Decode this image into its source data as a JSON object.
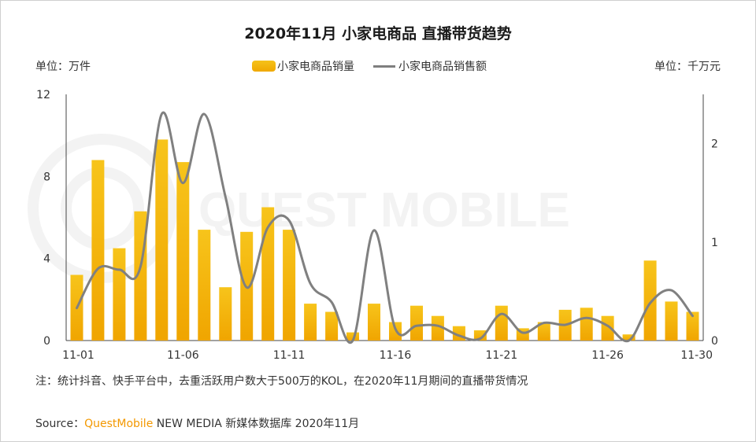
{
  "header": {
    "title": "2020年11月 小家电商品 直播带货趋势"
  },
  "units": {
    "left": "单位：万件",
    "right": "单位：千万元"
  },
  "legend": {
    "bar_label": "小家电商品销量",
    "line_label": "小家电商品销售额"
  },
  "watermark": {
    "text": "QUEST MOBILE"
  },
  "note": "注：统计抖音、快手平台中，去重活跃用户数大于500万的KOL，在2020年11月期间的直播带货情况",
  "source": {
    "prefix": "Source：",
    "brand": "QuestMobile",
    "rest": " NEW MEDIA 新媒体数据库 2020年11月"
  },
  "colors": {
    "bar_top": "#f7c41b",
    "bar_bottom": "#f0a500",
    "line": "#808080",
    "brand": "#f39800"
  },
  "chart_data": {
    "type": "bar",
    "categories": [
      "11-01",
      "11-02",
      "11-03",
      "11-04",
      "11-05",
      "11-06",
      "11-07",
      "11-08",
      "11-09",
      "11-10",
      "11-11",
      "11-12",
      "11-13",
      "11-14",
      "11-15",
      "11-16",
      "11-17",
      "11-18",
      "11-19",
      "11-20",
      "11-21",
      "11-22",
      "11-23",
      "11-24",
      "11-25",
      "11-26",
      "11-27",
      "11-28",
      "11-29",
      "11-30"
    ],
    "x_tick_labels": [
      "11-01",
      "11-06",
      "11-11",
      "11-16",
      "11-21",
      "11-26",
      "11-30"
    ],
    "series": [
      {
        "name": "小家电商品销量",
        "axis": "left",
        "chart": "bar",
        "values": [
          3.2,
          8.8,
          4.5,
          6.3,
          9.8,
          8.7,
          5.4,
          2.6,
          5.3,
          6.5,
          5.4,
          1.8,
          1.4,
          0.4,
          1.8,
          0.9,
          1.7,
          1.2,
          0.7,
          0.5,
          1.7,
          0.6,
          0.9,
          1.5,
          1.6,
          1.2,
          0.3,
          3.9,
          1.9,
          1.4
        ]
      },
      {
        "name": "小家电商品销售额",
        "axis": "right",
        "chart": "line",
        "values": [
          0.33,
          0.73,
          0.72,
          0.75,
          2.3,
          1.6,
          2.3,
          1.46,
          0.54,
          1.15,
          1.22,
          0.58,
          0.39,
          0.0,
          1.12,
          0.12,
          0.15,
          0.15,
          0.05,
          0.02,
          0.27,
          0.08,
          0.18,
          0.16,
          0.23,
          0.15,
          0.0,
          0.38,
          0.51,
          0.25
        ]
      }
    ],
    "yleft": {
      "ylim": [
        0,
        12
      ],
      "ticks": [
        0,
        4,
        8,
        12
      ]
    },
    "yright": {
      "ylim": [
        0,
        2.5
      ],
      "ticks": [
        0,
        1,
        2
      ]
    },
    "grid": false
  }
}
